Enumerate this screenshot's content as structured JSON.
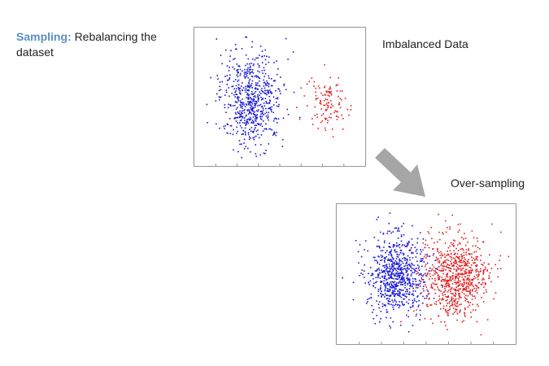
{
  "heading": {
    "keyword": "Sampling:",
    "text": "Rebalancing the dataset"
  },
  "labels": {
    "imbalanced": "Imbalanced Data",
    "oversampling": "Over-sampling"
  },
  "colors": {
    "majority": "#1a1ad6",
    "minority": "#e02020",
    "arrow": "#a6a6a6"
  },
  "icons": {
    "arrow": "arrow-down-right-icon"
  },
  "chart_data": [
    {
      "type": "scatter",
      "series": [
        {
          "color": "#1a1ad6",
          "count": 650,
          "center": [
            0.33,
            0.51
          ],
          "spread": [
            0.09,
            0.17
          ]
        },
        {
          "color": "#e02020",
          "count": 120,
          "center": [
            0.77,
            0.55
          ],
          "spread": [
            0.06,
            0.1
          ]
        }
      ]
    },
    {
      "type": "scatter",
      "series": [
        {
          "color": "#1a1ad6",
          "count": 750,
          "center": [
            0.33,
            0.5
          ],
          "spread": [
            0.08,
            0.14
          ]
        },
        {
          "color": "#e02020",
          "count": 750,
          "center": [
            0.66,
            0.52
          ],
          "spread": [
            0.09,
            0.15
          ]
        }
      ]
    }
  ]
}
